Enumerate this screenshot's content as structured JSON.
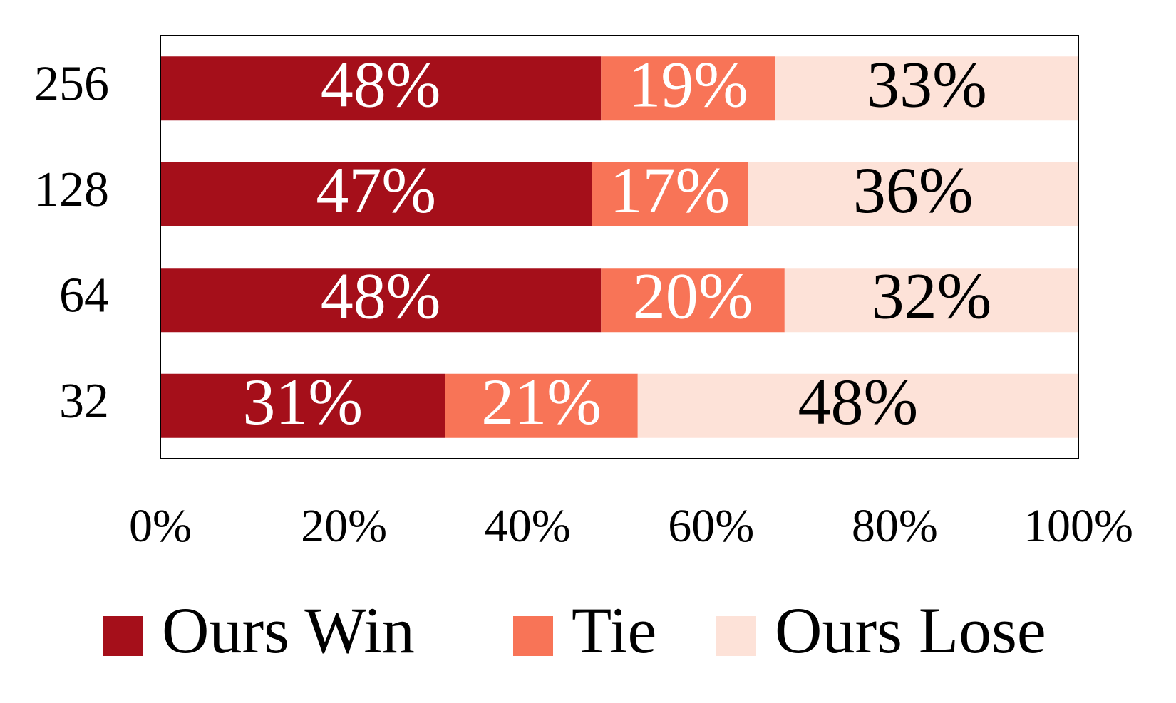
{
  "chart_data": {
    "type": "stacked_bar_horizontal",
    "categories": [
      "256",
      "128",
      "64",
      "32"
    ],
    "series": [
      {
        "name": "Ours Win",
        "color": "#a50f1a",
        "values": [
          48,
          47,
          48,
          31
        ],
        "value_labels": [
          "48%",
          "47%",
          "48%",
          "31%"
        ]
      },
      {
        "name": "Tie",
        "color": "#f87457",
        "values": [
          19,
          17,
          20,
          21
        ],
        "value_labels": [
          "19%",
          "17%",
          "20%",
          "21%"
        ]
      },
      {
        "name": "Ours Lose",
        "color": "#fde2d8",
        "values": [
          33,
          36,
          32,
          48
        ],
        "value_labels": [
          "33%",
          "36%",
          "32%",
          "48%"
        ]
      }
    ],
    "xlim": [
      0,
      100
    ],
    "xticks": [
      {
        "value": 0,
        "label": "0%"
      },
      {
        "value": 20,
        "label": "20%"
      },
      {
        "value": 40,
        "label": "40%"
      },
      {
        "value": 60,
        "label": "60%"
      },
      {
        "value": 80,
        "label": "80%"
      },
      {
        "value": 100,
        "label": "100%"
      }
    ]
  }
}
